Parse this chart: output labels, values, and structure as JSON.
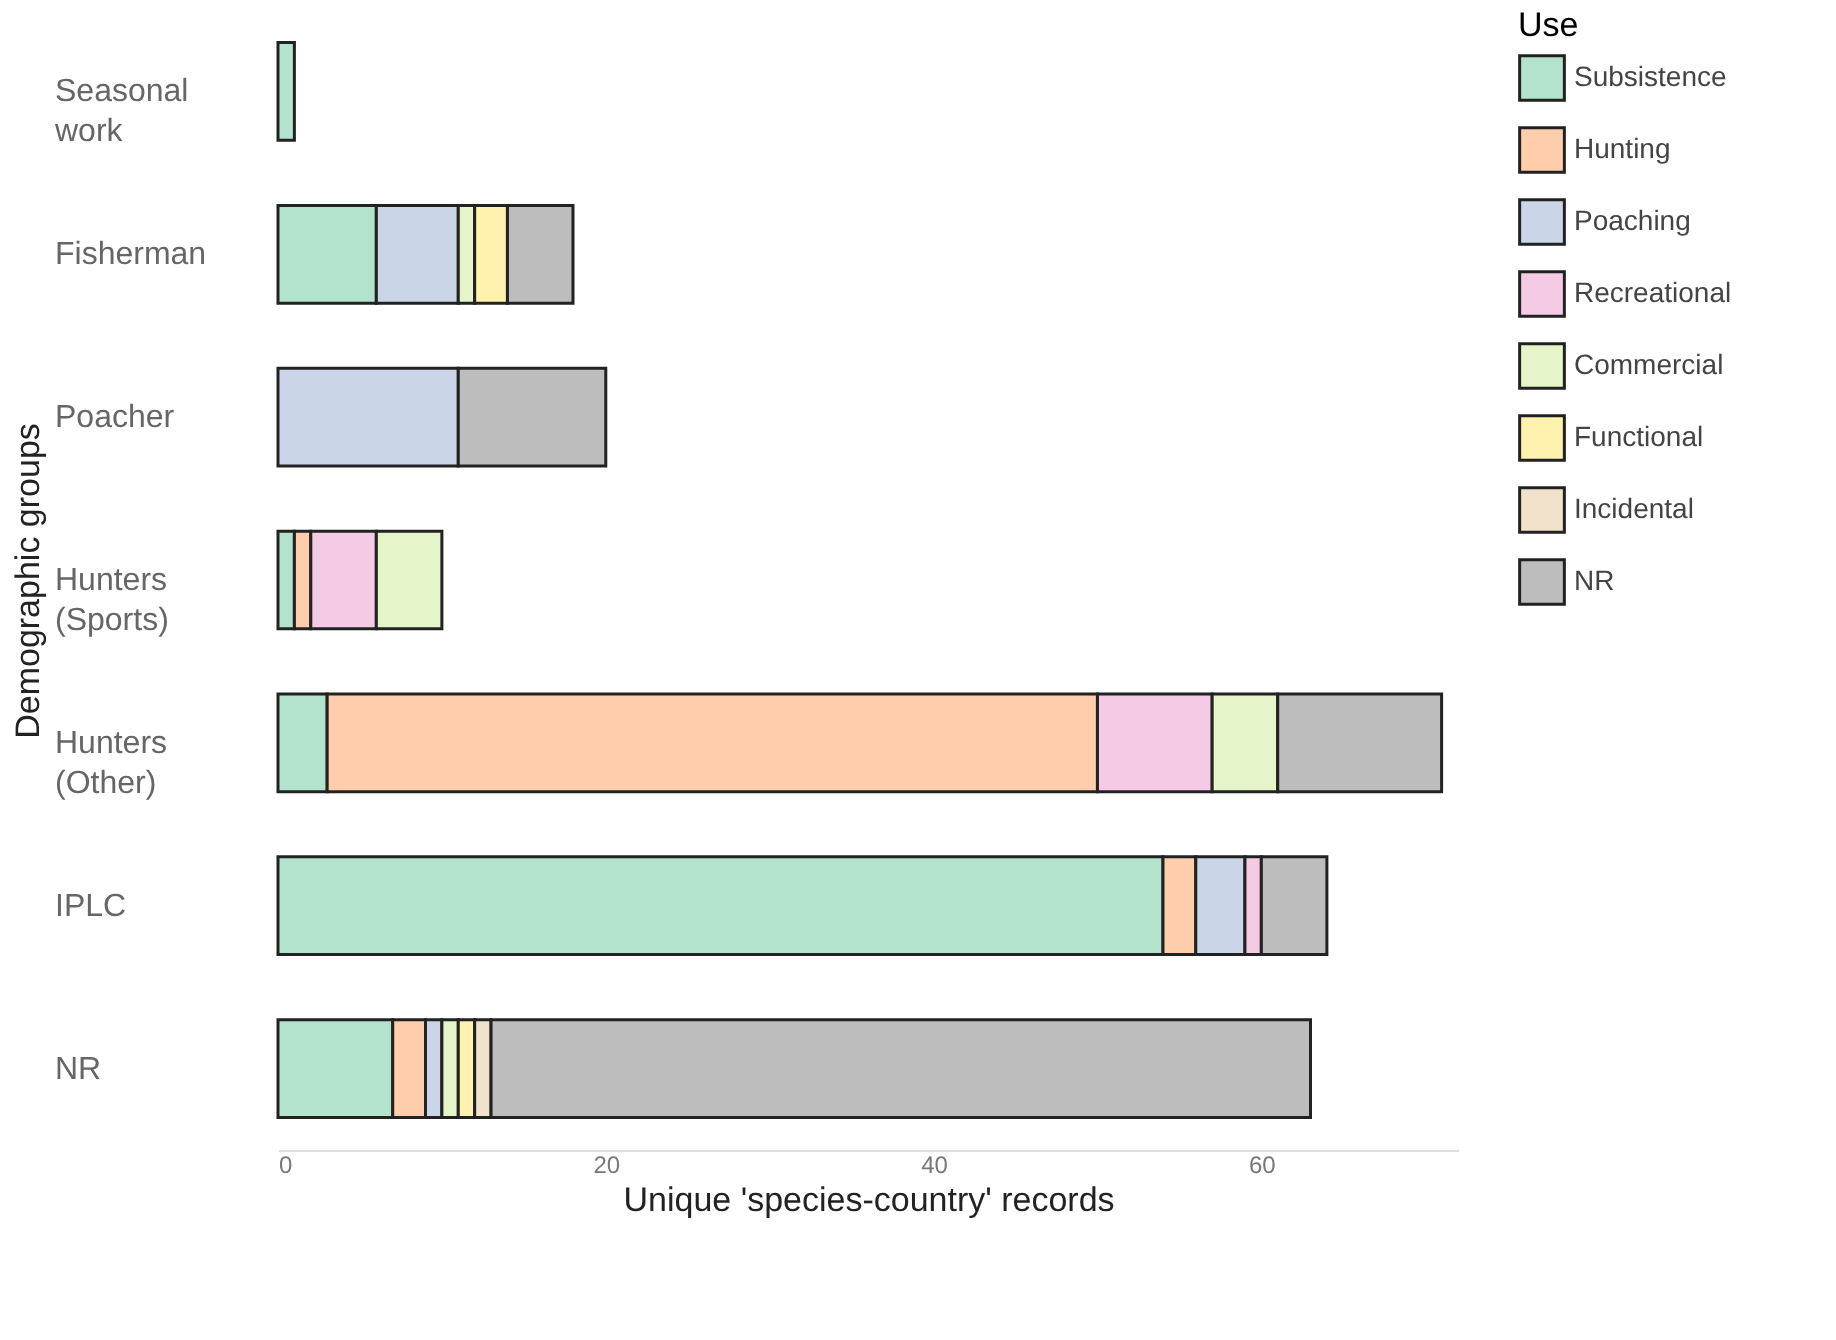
{
  "chart_data": {
    "type": "bar",
    "orientation": "horizontal",
    "stacked": true,
    "xlabel": "Unique 'species-country' records",
    "ylabel": "Demographic groups",
    "legend_title": "Use",
    "legend": "right",
    "grid": false,
    "categories": [
      "Seasonal work",
      "Fisherman",
      "Poacher",
      "Hunters (Sports)",
      "Hunters (Other)",
      "IPLC",
      "NR"
    ],
    "xlim": [
      0,
      72
    ],
    "xticks": [
      0,
      20,
      40,
      60
    ],
    "series": [
      {
        "name": "Subsistence",
        "color": "#b3e2cd",
        "values": [
          1,
          6,
          0,
          1,
          3,
          54,
          7
        ]
      },
      {
        "name": "Hunting",
        "color": "#fdcdac",
        "values": [
          0,
          0,
          0,
          1,
          47,
          2,
          2
        ]
      },
      {
        "name": "Poaching",
        "color": "#cbd5e8",
        "values": [
          0,
          5,
          11,
          0,
          0,
          3,
          1
        ]
      },
      {
        "name": "Recreational",
        "color": "#f4cae4",
        "values": [
          0,
          0,
          0,
          4,
          7,
          1,
          0
        ]
      },
      {
        "name": "Commercial",
        "color": "#e6f5c9",
        "values": [
          0,
          1,
          0,
          4,
          4,
          0,
          1
        ]
      },
      {
        "name": "Functional",
        "color": "#fff2ae",
        "values": [
          0,
          2,
          0,
          0,
          0,
          0,
          1
        ]
      },
      {
        "name": "Incidental",
        "color": "#f1e2cc",
        "values": [
          0,
          0,
          0,
          0,
          0,
          0,
          1
        ]
      },
      {
        "name": "NR",
        "color": "#bdbdbd",
        "values": [
          0,
          4,
          9,
          0,
          10,
          4,
          50
        ]
      }
    ]
  }
}
